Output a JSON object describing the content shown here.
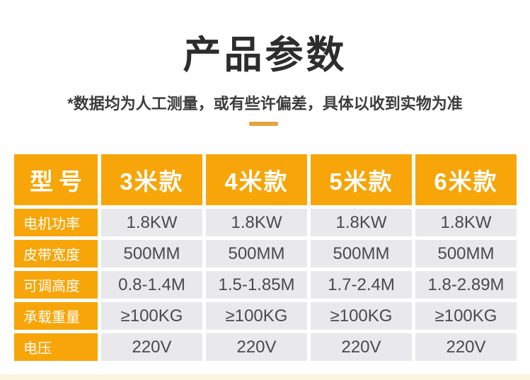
{
  "page": {
    "title": "产品参数",
    "subtitle": "*数据均为人工测量，或有些许偏差，具体以收到实物为准"
  },
  "colors": {
    "accent_orange": "#f7a508",
    "divider_gold": "#e2a53f",
    "cell_gray": "#e9e9ec",
    "bottom_band_cream": "#fbf4df",
    "value_text": "#4a4a4a",
    "title_text": "#2d2d2d"
  },
  "table": {
    "header": [
      "型号",
      "3米款",
      "4米款",
      "5米款",
      "6米款"
    ],
    "rows": [
      {
        "label": "电机功率",
        "values": [
          "1.8KW",
          "1.8KW",
          "1.8KW",
          "1.8KW"
        ]
      },
      {
        "label": "皮带宽度",
        "values": [
          "500MM",
          "500MM",
          "500MM",
          "500MM"
        ]
      },
      {
        "label": "可调高度",
        "values": [
          "0.8-1.4M",
          "1.5-1.85M",
          "1.7-2.4M",
          "1.8-2.89M"
        ]
      },
      {
        "label": "承载重量",
        "values": [
          "≥100KG",
          "≥100KG",
          "≥100KG",
          "≥100KG"
        ]
      },
      {
        "label": "电压",
        "values": [
          "220V",
          "220V",
          "220V",
          "220V"
        ]
      }
    ]
  }
}
